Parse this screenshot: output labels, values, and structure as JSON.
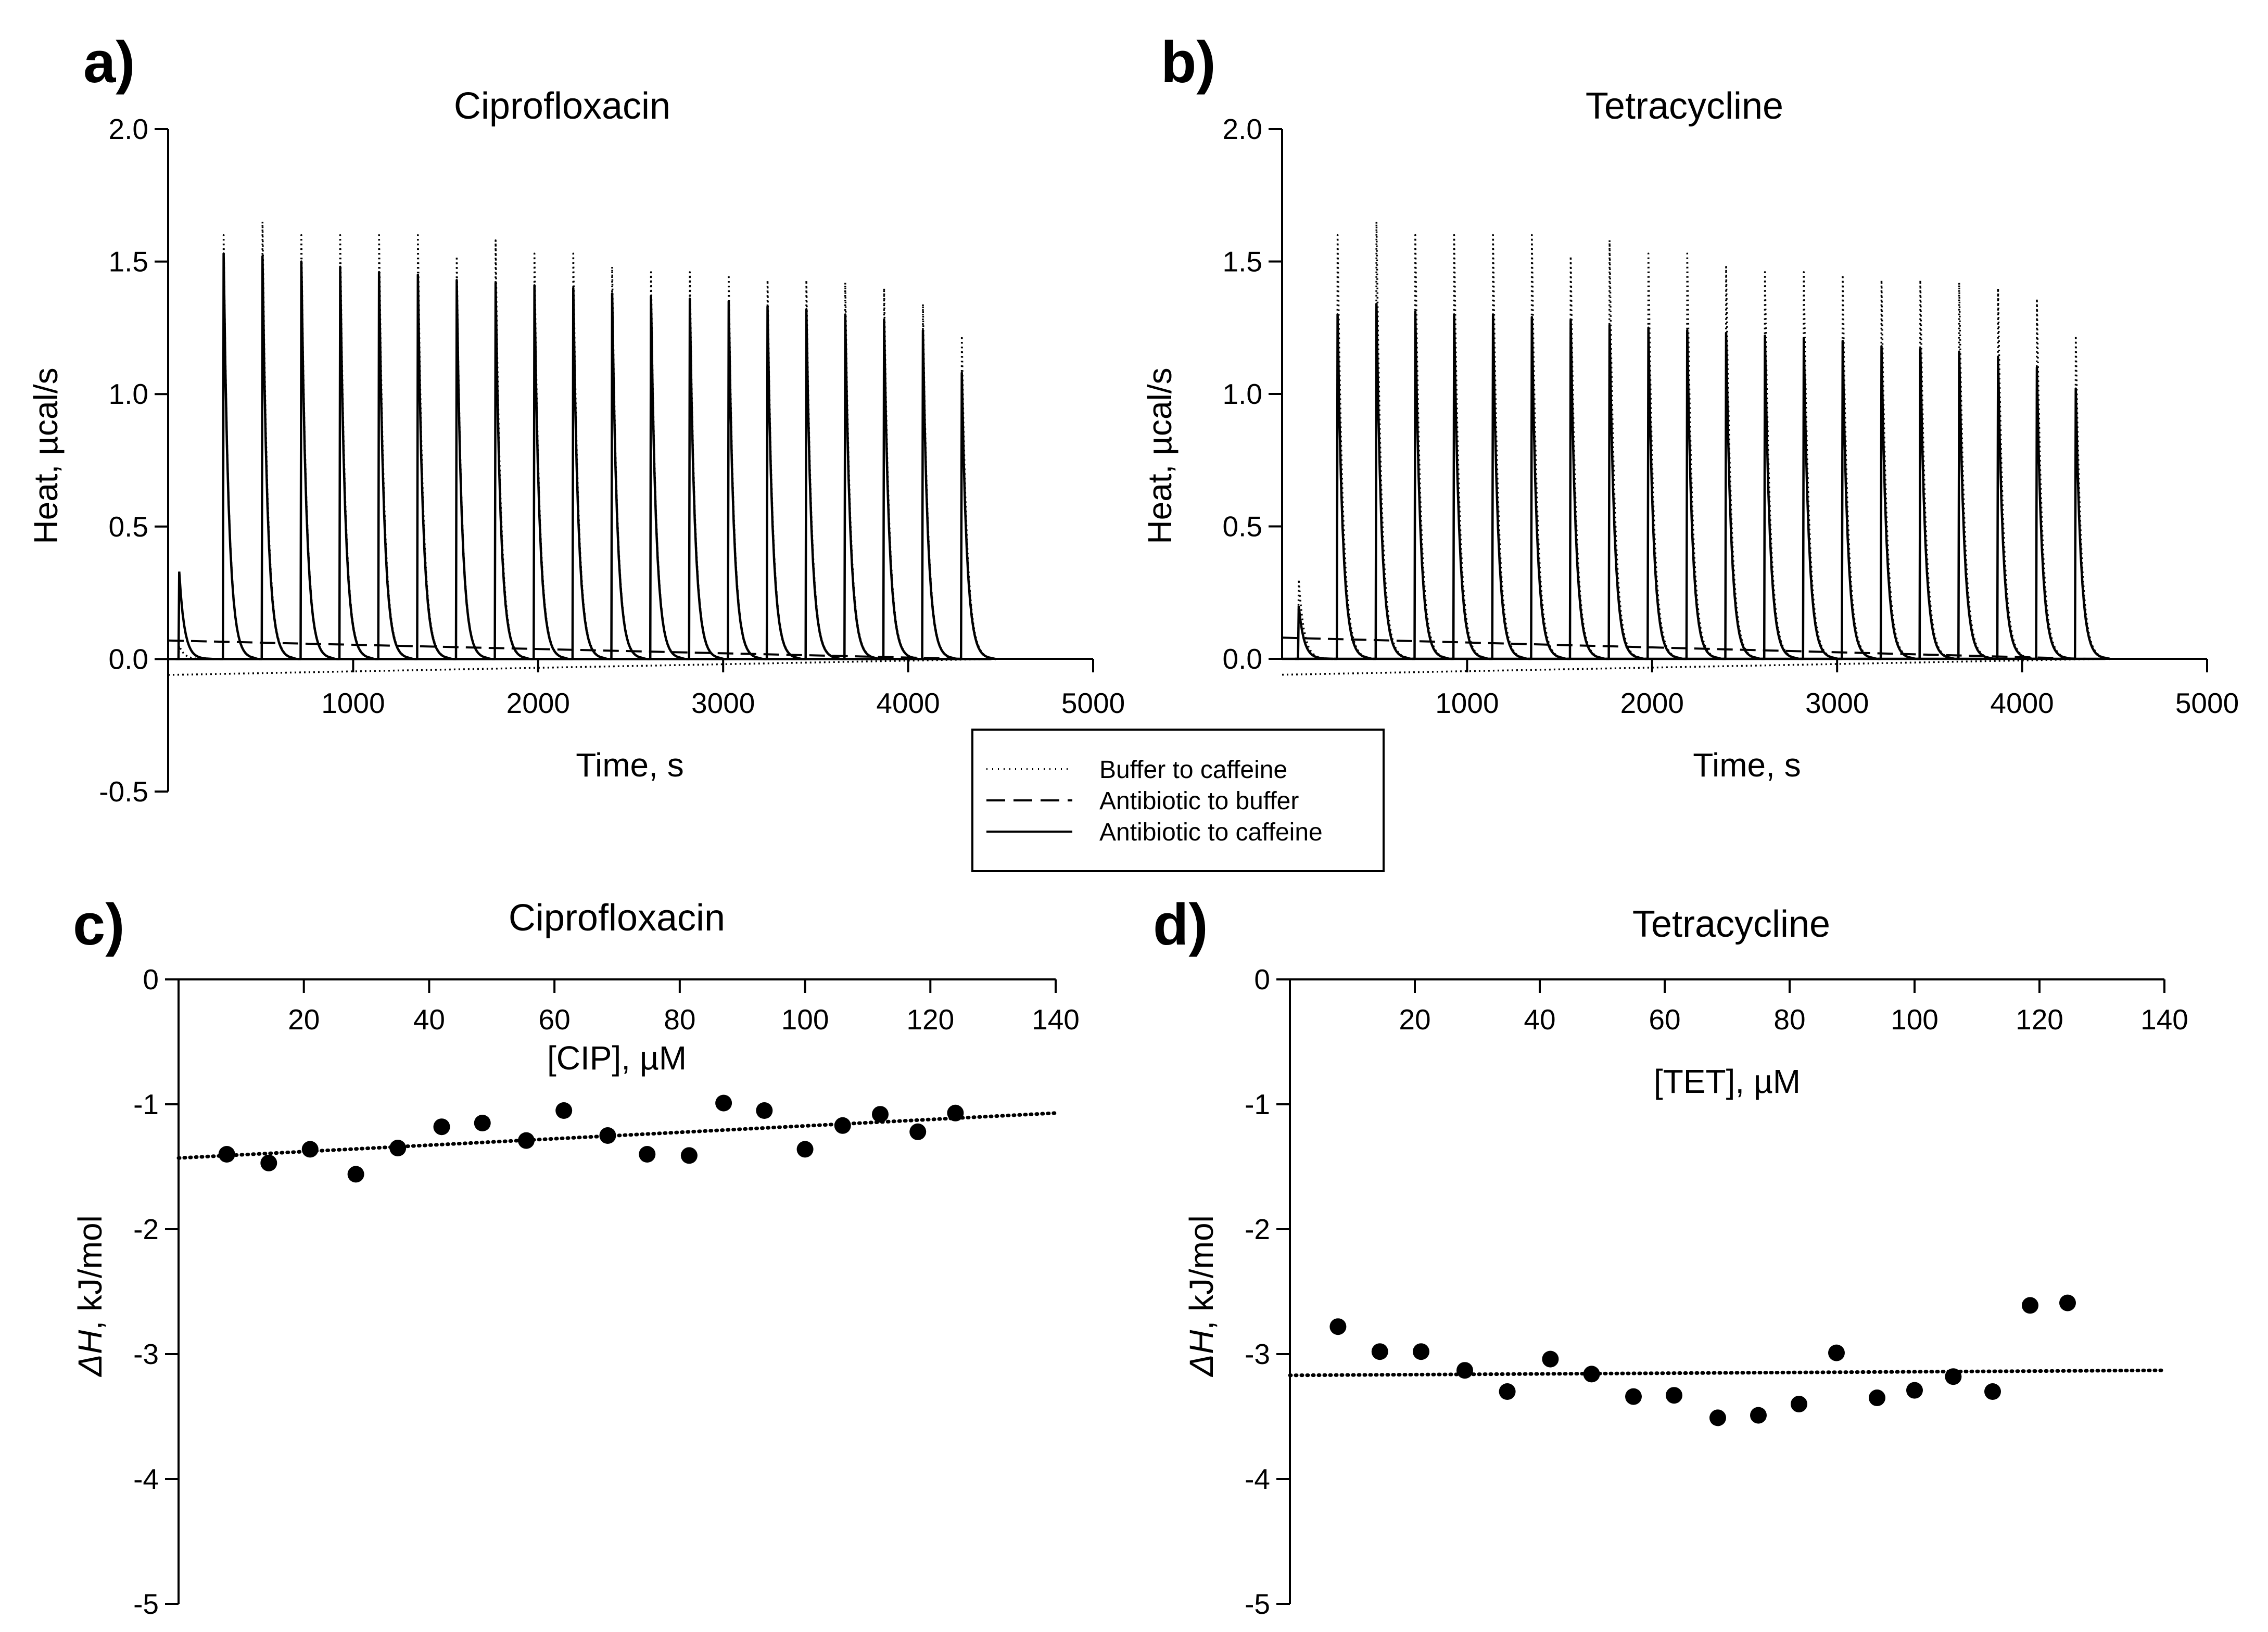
{
  "figure": {
    "legend": {
      "entries": [
        {
          "label": "Buffer to caffeine",
          "style": "dotted"
        },
        {
          "label": "Antibiotic to buffer",
          "style": "dashed"
        },
        {
          "label": "Antibiotic to caffeine",
          "style": "solid"
        }
      ]
    }
  },
  "chart_data": [
    {
      "panel": "a)",
      "type": "line",
      "title": "Ciprofloxacin",
      "xlabel": "Time, s",
      "ylabel": "Heat, µcal/s",
      "xlim": [
        0,
        5000
      ],
      "ylim": [
        -0.5,
        2.0
      ],
      "xticks": [
        1000,
        2000,
        3000,
        4000,
        5000
      ],
      "yticks": [
        -0.5,
        0.0,
        0.5,
        1.0,
        1.5,
        2.0
      ],
      "ytick_labels": [
        "-0.5",
        "0.0",
        "0.5",
        "1.0",
        "1.5",
        "2.0"
      ],
      "small_peak": {
        "time": 60,
        "buffer_to_caffeine": 0.05,
        "antibiotic_to_caffeine": 0.33
      },
      "peak_times": [
        300,
        510,
        720,
        930,
        1140,
        1350,
        1560,
        1770,
        1980,
        2190,
        2400,
        2610,
        2820,
        3030,
        3240,
        3450,
        3660,
        3870,
        4080,
        4290
      ],
      "series": [
        {
          "name": "Buffer to caffeine",
          "style": "dotted",
          "peak_heights": [
            1.6,
            1.65,
            1.6,
            1.6,
            1.6,
            1.6,
            1.52,
            1.58,
            1.53,
            1.53,
            1.48,
            1.46,
            1.46,
            1.45,
            1.43,
            1.43,
            1.42,
            1.4,
            1.34,
            1.22
          ]
        },
        {
          "name": "Antibiotic to buffer",
          "style": "dashed",
          "start": 0.07,
          "end": 0.0
        },
        {
          "name": "Antibiotic to caffeine",
          "style": "solid",
          "peak_heights": [
            1.53,
            1.52,
            1.5,
            1.48,
            1.46,
            1.45,
            1.43,
            1.42,
            1.41,
            1.4,
            1.38,
            1.37,
            1.36,
            1.35,
            1.33,
            1.32,
            1.3,
            1.28,
            1.24,
            1.08
          ]
        }
      ]
    },
    {
      "panel": "b)",
      "type": "line",
      "title": "Tetracycline",
      "xlabel": "Time, s",
      "ylabel": "Heat, µcal/s",
      "xlim": [
        0,
        5000
      ],
      "ylim": [
        0.0,
        2.0
      ],
      "xticks": [
        1000,
        2000,
        3000,
        4000,
        5000
      ],
      "yticks": [
        0.0,
        0.5,
        1.0,
        1.5,
        2.0
      ],
      "ytick_labels": [
        "0.0",
        "0.5",
        "1.0",
        "1.5",
        "2.0"
      ],
      "small_peak": {
        "time": 90,
        "buffer_to_caffeine": 0.3,
        "antibiotic_to_caffeine": 0.2
      },
      "peak_times": [
        300,
        510,
        720,
        930,
        1140,
        1350,
        1560,
        1770,
        1980,
        2190,
        2400,
        2610,
        2820,
        3030,
        3240,
        3450,
        3660,
        3870,
        4080,
        4290
      ],
      "series": [
        {
          "name": "Buffer to caffeine",
          "style": "dotted",
          "peak_heights": [
            1.6,
            1.65,
            1.6,
            1.6,
            1.6,
            1.6,
            1.52,
            1.58,
            1.53,
            1.53,
            1.48,
            1.46,
            1.46,
            1.45,
            1.43,
            1.43,
            1.42,
            1.4,
            1.36,
            1.22
          ]
        },
        {
          "name": "Antibiotic to buffer",
          "style": "dashed",
          "start": 0.08,
          "end": 0.0
        },
        {
          "name": "Antibiotic to caffeine",
          "style": "solid",
          "peak_heights": [
            1.3,
            1.34,
            1.31,
            1.3,
            1.3,
            1.29,
            1.28,
            1.26,
            1.25,
            1.24,
            1.23,
            1.22,
            1.21,
            1.2,
            1.18,
            1.17,
            1.16,
            1.14,
            1.1,
            1.02
          ]
        }
      ]
    },
    {
      "panel": "c)",
      "type": "scatter",
      "title": "Ciprofloxacin",
      "xlabel": "[CIP], µM",
      "ylabel_symbol": "ΔH",
      "ylabel_rest": ", kJ/mol",
      "xlim": [
        0,
        140
      ],
      "ylim": [
        -5,
        0
      ],
      "xticks": [
        20,
        40,
        60,
        80,
        100,
        120,
        140
      ],
      "yticks": [
        0,
        -1,
        -2,
        -3,
        -4,
        -5
      ],
      "x": [
        7.7,
        14.4,
        21.0,
        28.3,
        35.0,
        42.0,
        48.5,
        55.5,
        61.5,
        68.5,
        74.8,
        81.5,
        87.0,
        93.5,
        100.0,
        106.0,
        112.0,
        118.0,
        124.0
      ],
      "y": [
        -1.4,
        -1.47,
        -1.36,
        -1.56,
        -1.35,
        -1.18,
        -1.15,
        -1.29,
        -1.05,
        -1.25,
        -1.4,
        -1.41,
        -0.99,
        -1.05,
        -1.36,
        -1.17,
        -1.08,
        -1.22,
        -1.07
      ],
      "trendline": {
        "style": "dotted",
        "x": [
          0,
          140
        ],
        "y": [
          -1.43,
          -1.07
        ]
      }
    },
    {
      "panel": "d)",
      "type": "scatter",
      "title": "Tetracycline",
      "xlabel": "[TET], µM",
      "ylabel_symbol": "ΔH",
      "ylabel_rest": ", kJ/mol",
      "xlim": [
        0,
        140
      ],
      "ylim": [
        -5,
        0
      ],
      "xticks": [
        20,
        40,
        60,
        80,
        100,
        120,
        140
      ],
      "yticks": [
        0,
        -1,
        -2,
        -3,
        -4,
        -5
      ],
      "x": [
        7.7,
        14.4,
        21.0,
        28.0,
        34.8,
        41.7,
        48.3,
        55.0,
        61.5,
        68.5,
        75.0,
        81.5,
        87.5,
        94.0,
        100.0,
        106.2,
        112.5,
        118.5,
        124.5
      ],
      "y": [
        -2.78,
        -2.98,
        -2.98,
        -3.13,
        -3.3,
        -3.04,
        -3.16,
        -3.34,
        -3.33,
        -3.51,
        -3.49,
        -3.4,
        -2.99,
        -3.35,
        -3.29,
        -3.18,
        -3.3,
        -2.61,
        -2.59
      ],
      "trendline": {
        "style": "dotted",
        "x": [
          0,
          140
        ],
        "y": [
          -3.17,
          -3.13
        ]
      }
    }
  ]
}
